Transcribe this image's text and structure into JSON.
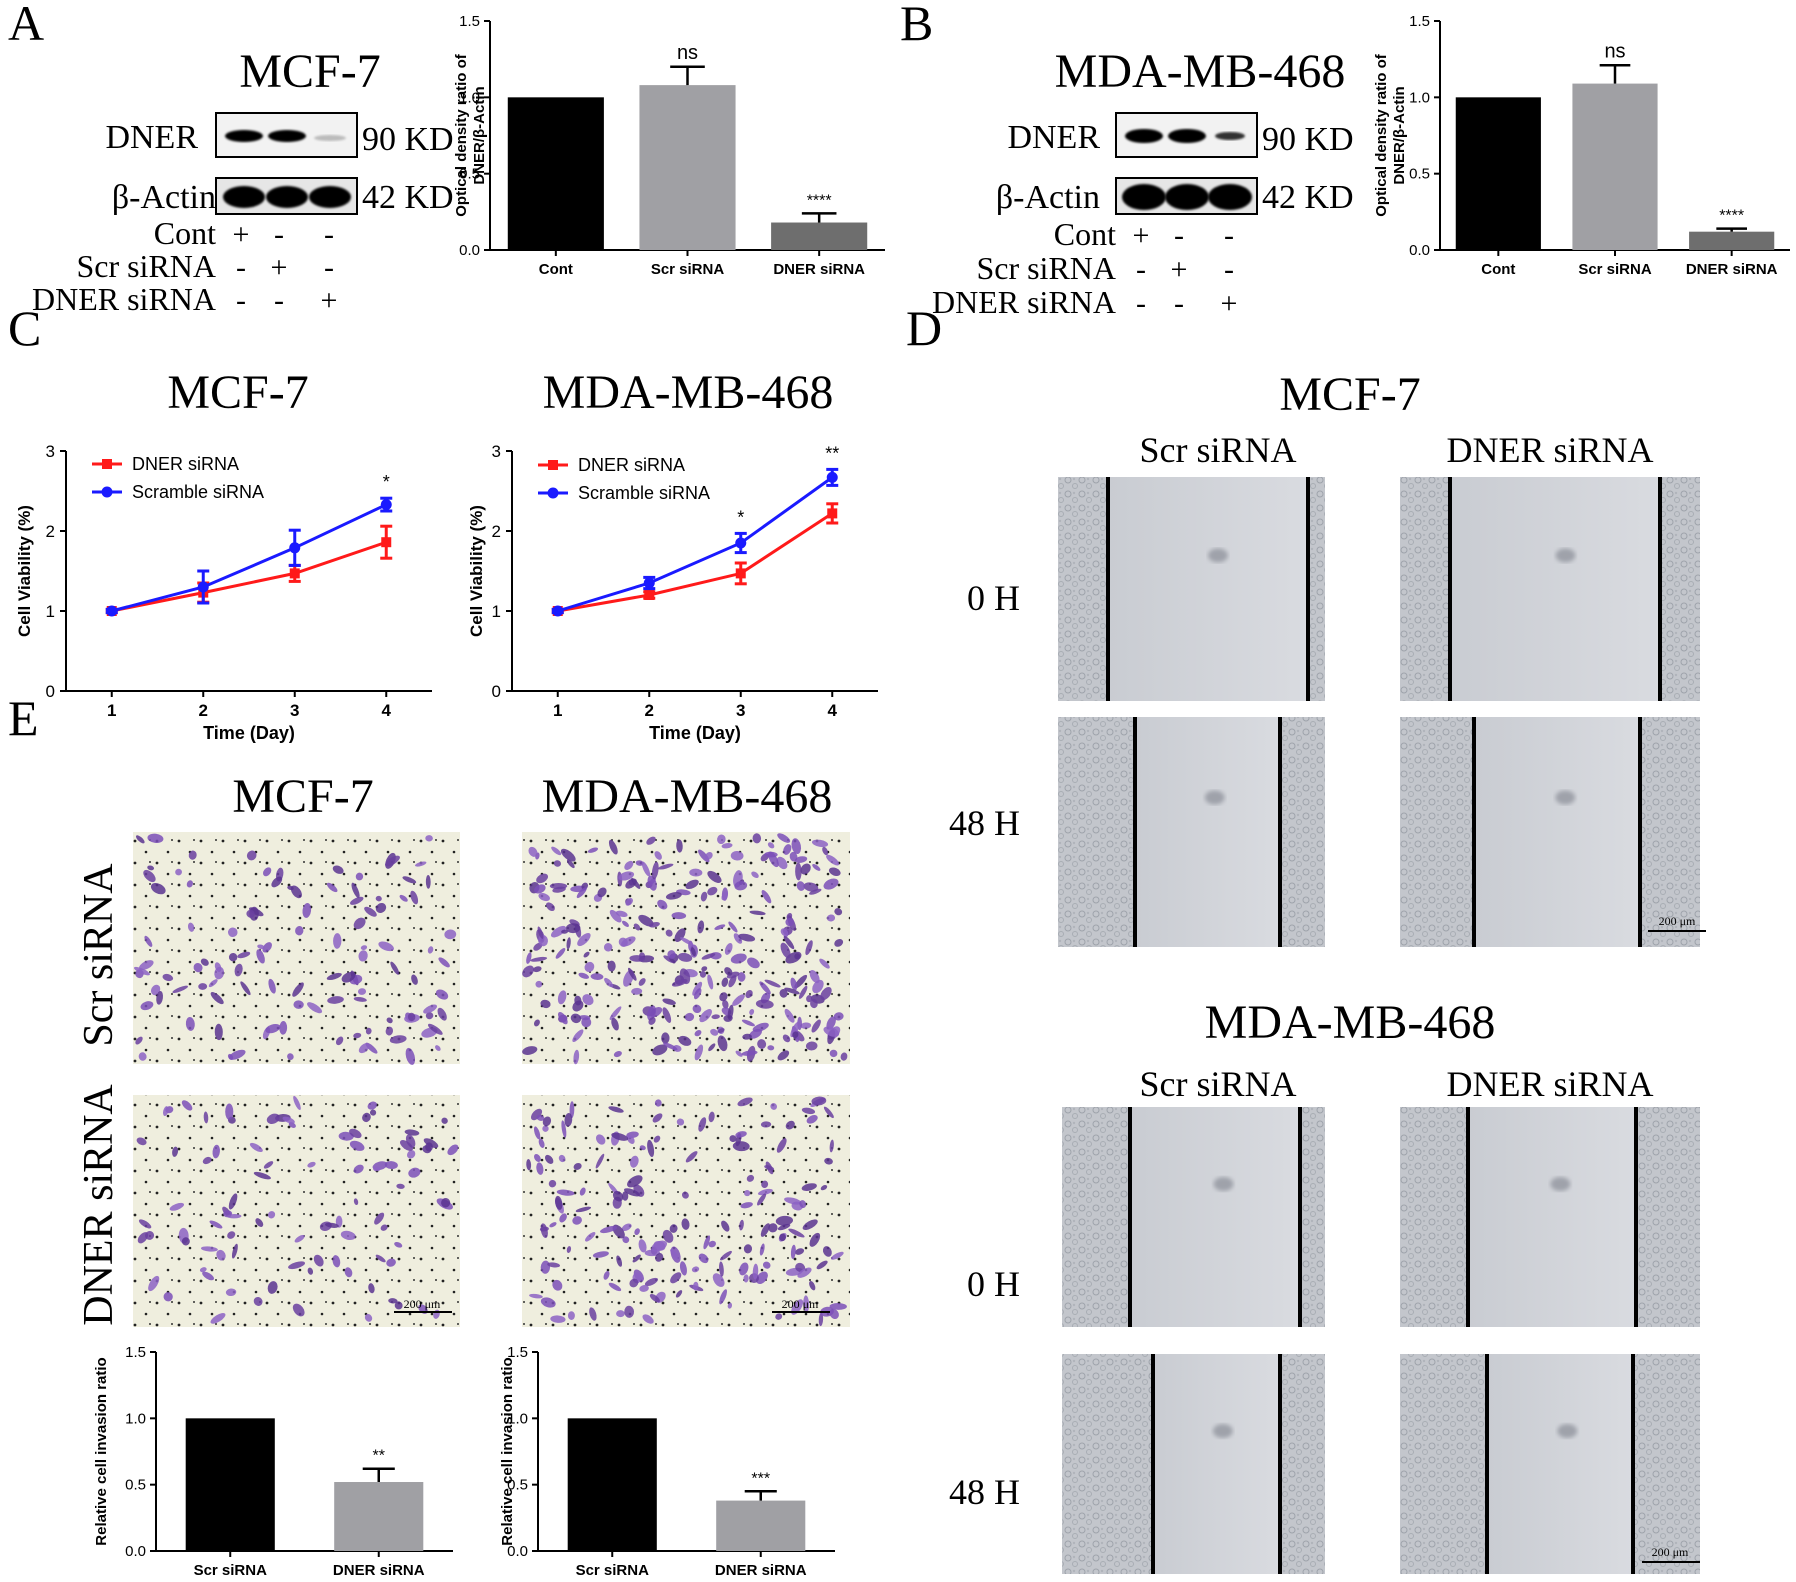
{
  "panels": {
    "A": {
      "letter": "A",
      "cell_line": "MCF-7",
      "blot_labels": [
        "DNER",
        "β-Actin"
      ],
      "blot_sizes": [
        "90 KD",
        "42 KD"
      ],
      "conditions": [
        {
          "name": "Cont",
          "signs": [
            "+",
            "-",
            "-"
          ]
        },
        {
          "name": "Scr siRNA",
          "signs": [
            "-",
            "+",
            "-"
          ]
        },
        {
          "name": "DNER siRNA",
          "signs": [
            "-",
            "-",
            "+"
          ]
        }
      ]
    },
    "B": {
      "letter": "B",
      "cell_line": "MDA-MB-468",
      "blot_labels": [
        "DNER",
        "β-Actin"
      ],
      "blot_sizes": [
        "90 KD",
        "42 KD"
      ],
      "conditions": [
        {
          "name": "Cont",
          "signs": [
            "+",
            "-",
            "-"
          ]
        },
        {
          "name": "Scr siRNA",
          "signs": [
            "-",
            "+",
            "-"
          ]
        },
        {
          "name": "DNER siRNA",
          "signs": [
            "-",
            "-",
            "+"
          ]
        }
      ]
    },
    "C": {
      "letter": "C",
      "titles": [
        "MCF-7",
        "MDA-MB-468"
      ]
    },
    "D": {
      "letter": "D",
      "sections": [
        {
          "title": "MCF-7",
          "columns": [
            "Scr siRNA",
            "DNER siRNA"
          ],
          "rows": [
            "0 H",
            "48 H"
          ],
          "scale_bar": "200 μm"
        },
        {
          "title": "MDA-MB-468",
          "columns": [
            "Scr siRNA",
            "DNER siRNA"
          ],
          "rows": [
            "0 H",
            "48 H"
          ],
          "scale_bar": "200 μm"
        }
      ]
    },
    "E": {
      "letter": "E",
      "titles": [
        "MCF-7",
        "MDA-MB-468"
      ],
      "row_labels": [
        "Scr siRNA",
        "DNER siRNA"
      ],
      "scale_bar": "200 μm"
    }
  },
  "colors": {
    "black_bar": "#000000",
    "grey_bar": "#a0a0a4",
    "dark_grey_bar": "#6e6e6e",
    "red_series": "#ff1a1a",
    "blue_series": "#1a1aff"
  },
  "chart_data": [
    {
      "id": "A-bar",
      "type": "bar",
      "categories": [
        "Cont",
        "Scr siRNA",
        "DNER siRNA"
      ],
      "values": [
        1.0,
        1.08,
        0.18
      ],
      "errors": [
        0,
        0.12,
        0.06
      ],
      "bar_colors": [
        "#000000",
        "#a0a0a4",
        "#6e6e6e"
      ],
      "annotations": [
        "",
        "ns",
        "****"
      ],
      "ylabel": "Optical density ratio of DNER/β-Actin",
      "ylabel_lines": [
        "Optical density ratio of",
        "DNER/β-Actin"
      ],
      "ylim": [
        0,
        1.5
      ],
      "yticks": [
        "0.0",
        "0.5",
        "1.0",
        "1.5"
      ]
    },
    {
      "id": "B-bar",
      "type": "bar",
      "categories": [
        "Cont",
        "Scr siRNA",
        "DNER siRNA"
      ],
      "values": [
        1.0,
        1.09,
        0.12
      ],
      "errors": [
        0,
        0.12,
        0.02
      ],
      "bar_colors": [
        "#000000",
        "#a0a0a4",
        "#6e6e6e"
      ],
      "annotations": [
        "",
        "ns",
        "****"
      ],
      "ylabel": "Optical density ratio of DNER/β-Actin",
      "ylabel_lines": [
        "Optical density ratio of",
        "DNER/β-Actin"
      ],
      "ylim": [
        0,
        1.5
      ],
      "yticks": [
        "0.0",
        "0.5",
        "1.0",
        "1.5"
      ]
    },
    {
      "id": "C-line-mcf7",
      "type": "line",
      "x": [
        1,
        2,
        3,
        4
      ],
      "xticks": [
        "1",
        "2",
        "3",
        "4"
      ],
      "series": [
        {
          "name": "DNER siRNA",
          "color": "#ff1a1a",
          "marker": "square",
          "values": [
            1.0,
            1.23,
            1.47,
            1.86
          ],
          "errors": [
            0.02,
            0.12,
            0.1,
            0.2
          ]
        },
        {
          "name": "Scramble siRNA",
          "color": "#1a1aff",
          "marker": "circle",
          "values": [
            1.0,
            1.3,
            1.79,
            2.33
          ],
          "errors": [
            0.02,
            0.2,
            0.22,
            0.08
          ]
        }
      ],
      "annotations": [
        {
          "x": 4,
          "text": "*"
        }
      ],
      "xlabel": "Time (Day)",
      "ylabel": "Cell Viability (%)",
      "ylim": [
        0,
        3
      ],
      "yticks": [
        "0",
        "1",
        "2",
        "3"
      ],
      "xlim": [
        0.5,
        4.5
      ]
    },
    {
      "id": "C-line-mdamb468",
      "type": "line",
      "x": [
        1,
        2,
        3,
        4
      ],
      "xticks": [
        "1",
        "2",
        "3",
        "4"
      ],
      "series": [
        {
          "name": "DNER siRNA",
          "color": "#ff1a1a",
          "marker": "square",
          "values": [
            1.0,
            1.2,
            1.47,
            2.22
          ],
          "errors": [
            0.02,
            0.04,
            0.13,
            0.12
          ]
        },
        {
          "name": "Scramble siRNA",
          "color": "#1a1aff",
          "marker": "circle",
          "values": [
            1.0,
            1.35,
            1.85,
            2.67
          ],
          "errors": [
            0.02,
            0.07,
            0.12,
            0.1
          ]
        }
      ],
      "annotations": [
        {
          "x": 3,
          "text": "*"
        },
        {
          "x": 4,
          "text": "**"
        }
      ],
      "xlabel": "Time (Day)",
      "ylabel": "Cell Viability (%)",
      "ylim": [
        0,
        3
      ],
      "yticks": [
        "0",
        "1",
        "2",
        "3"
      ],
      "xlim": [
        0.5,
        4.5
      ]
    },
    {
      "id": "E-bar-mcf7",
      "type": "bar",
      "categories": [
        "Scr siRNA",
        "DNER siRNA"
      ],
      "values": [
        1.0,
        0.52
      ],
      "errors": [
        0,
        0.1
      ],
      "bar_colors": [
        "#000000",
        "#a0a0a4"
      ],
      "annotations": [
        "",
        "**"
      ],
      "ylabel": "Relative cell invasion ratio",
      "ylim": [
        0,
        1.5
      ],
      "yticks": [
        "0.0",
        "0.5",
        "1.0",
        "1.5"
      ]
    },
    {
      "id": "E-bar-mdamb468",
      "type": "bar",
      "categories": [
        "Scr siRNA",
        "DNER siRNA"
      ],
      "values": [
        1.0,
        0.38
      ],
      "errors": [
        0,
        0.07
      ],
      "bar_colors": [
        "#000000",
        "#a0a0a4"
      ],
      "annotations": [
        "",
        "***"
      ],
      "ylabel": "Relative cell invasion ratio",
      "ylim": [
        0,
        1.5
      ],
      "yticks": [
        "0.0",
        "0.5",
        "1.0",
        "1.5"
      ]
    }
  ]
}
